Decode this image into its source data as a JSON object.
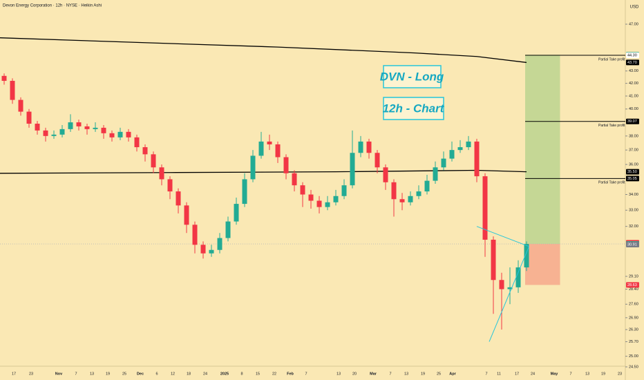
{
  "header": {
    "title": "Devon Energy Corporation · 12h · NYSE · Heikin Ashi",
    "currency": "USD"
  },
  "chart_data": {
    "type": "candlestick",
    "log_scale": true,
    "up_color": "#22ab94",
    "down_color": "#f23645",
    "ylim": [
      24.5,
      47
    ],
    "yticks": [
      {
        "value": 47,
        "label": "47.00"
      },
      {
        "value": 43,
        "label": "43.00"
      },
      {
        "value": 42,
        "label": "42.00"
      },
      {
        "value": 41,
        "label": "41.00"
      },
      {
        "value": 40,
        "label": "40.00"
      },
      {
        "value": 38,
        "label": "38.00"
      },
      {
        "value": 37,
        "label": "37.00"
      },
      {
        "value": 36,
        "label": "36.00"
      },
      {
        "value": 34,
        "label": "34.00"
      },
      {
        "value": 33,
        "label": "33.00"
      },
      {
        "value": 32,
        "label": "32.00"
      },
      {
        "value": 29.1,
        "label": "29.10"
      },
      {
        "value": 28.4,
        "label": "28.40"
      },
      {
        "value": 27.6,
        "label": "27.60"
      },
      {
        "value": 26.9,
        "label": "26.90"
      },
      {
        "value": 26.3,
        "label": "26.30"
      },
      {
        "value": 25.7,
        "label": "25.70"
      },
      {
        "value": 25,
        "label": "25.00"
      },
      {
        "value": 24.5,
        "label": "24.50"
      }
    ],
    "price_tags": [
      {
        "value": 44.34,
        "label": "44.34",
        "color": "#089981"
      },
      {
        "value": 44.3,
        "label": "44.30",
        "color": "#ffffff"
      },
      {
        "value": 43.7,
        "label": "43.70",
        "color": "#000000"
      },
      {
        "value": 39.07,
        "label": "39.07",
        "color": "#000000"
      },
      {
        "value": 35.5,
        "label": "35.50",
        "color": "#000000"
      },
      {
        "value": 35.05,
        "label": "35.05",
        "color": "#000000"
      },
      {
        "value": 31.02,
        "label": "31.02",
        "color": "#f23645"
      },
      {
        "value": 30.95,
        "label": "30.95",
        "color": "#22ab94"
      },
      {
        "value": 30.91,
        "label": "30.91",
        "color": "#787b86"
      },
      {
        "value": 28.63,
        "label": "28.63",
        "color": "#f23645"
      }
    ],
    "xticks": [
      "17",
      "23",
      "Nov",
      "7",
      "13",
      "19",
      "25",
      "Dec",
      "6",
      "12",
      "18",
      "24",
      "2025",
      "8",
      "15",
      "22",
      "Feb",
      "7",
      "13",
      "20",
      "Mar",
      "7",
      "13",
      "19",
      "25",
      "Apr",
      "7",
      "11",
      "17",
      "24",
      "May",
      "7",
      "13",
      "19",
      "23"
    ],
    "candles": [
      [
        42.6,
        42.8,
        41.9,
        42.2
      ],
      [
        42.2,
        42.4,
        40.4,
        40.7
      ],
      [
        40.7,
        40.9,
        39.5,
        39.8
      ],
      [
        39.8,
        40.0,
        38.6,
        38.9
      ],
      [
        38.9,
        39.1,
        38.1,
        38.4
      ],
      [
        38.4,
        38.6,
        37.6,
        38.0
      ],
      [
        38.0,
        38.4,
        37.8,
        38.1
      ],
      [
        38.1,
        38.8,
        37.9,
        38.5
      ],
      [
        38.5,
        39.6,
        38.3,
        39.0
      ],
      [
        39.0,
        39.2,
        38.4,
        38.7
      ],
      [
        38.7,
        38.9,
        38.1,
        38.5
      ],
      [
        38.5,
        39.0,
        38.3,
        38.6
      ],
      [
        38.6,
        38.8,
        37.8,
        38.2
      ],
      [
        38.2,
        38.4,
        37.6,
        37.9
      ],
      [
        37.9,
        38.6,
        37.7,
        38.3
      ],
      [
        38.3,
        38.5,
        37.6,
        37.9
      ],
      [
        37.9,
        38.1,
        36.9,
        37.2
      ],
      [
        37.2,
        37.4,
        36.2,
        36.7
      ],
      [
        36.7,
        36.9,
        35.4,
        35.8
      ],
      [
        35.8,
        36.0,
        34.6,
        35.0
      ],
      [
        35.0,
        35.2,
        33.7,
        34.2
      ],
      [
        34.2,
        34.4,
        32.8,
        33.3
      ],
      [
        33.3,
        33.5,
        31.6,
        32.1
      ],
      [
        32.1,
        32.3,
        30.4,
        30.9
      ],
      [
        30.9,
        31.1,
        30.1,
        30.4
      ],
      [
        30.4,
        30.9,
        30.2,
        30.6
      ],
      [
        30.6,
        31.6,
        30.4,
        31.3
      ],
      [
        31.3,
        32.6,
        31.1,
        32.3
      ],
      [
        32.3,
        33.8,
        32.1,
        33.4
      ],
      [
        33.4,
        35.4,
        33.2,
        35.0
      ],
      [
        35.0,
        37.0,
        34.8,
        36.6
      ],
      [
        36.6,
        38.3,
        36.4,
        37.6
      ],
      [
        37.6,
        38.1,
        37.0,
        37.4
      ],
      [
        37.4,
        37.6,
        36.1,
        36.5
      ],
      [
        36.5,
        36.7,
        35.0,
        35.4
      ],
      [
        35.4,
        35.6,
        34.2,
        34.6
      ],
      [
        34.6,
        34.8,
        33.2,
        34.0
      ],
      [
        34.0,
        34.3,
        33.1,
        33.6
      ],
      [
        33.6,
        33.9,
        32.8,
        33.2
      ],
      [
        33.2,
        33.9,
        33.0,
        33.5
      ],
      [
        33.5,
        34.3,
        33.3,
        33.9
      ],
      [
        33.9,
        35.0,
        33.7,
        34.6
      ],
      [
        34.6,
        38.4,
        34.4,
        36.8
      ],
      [
        36.8,
        38.0,
        36.5,
        37.6
      ],
      [
        37.6,
        37.8,
        36.4,
        36.8
      ],
      [
        36.8,
        37.0,
        35.4,
        35.8
      ],
      [
        35.8,
        36.0,
        34.3,
        34.8
      ],
      [
        34.8,
        35.0,
        32.6,
        33.7
      ],
      [
        33.7,
        34.1,
        33.0,
        33.5
      ],
      [
        33.5,
        34.2,
        33.3,
        33.9
      ],
      [
        33.9,
        34.6,
        33.7,
        34.2
      ],
      [
        34.2,
        35.3,
        34.0,
        34.9
      ],
      [
        34.9,
        36.2,
        34.7,
        35.8
      ],
      [
        35.8,
        36.9,
        35.6,
        36.4
      ],
      [
        36.4,
        37.6,
        36.2,
        37.0
      ],
      [
        37.0,
        37.7,
        36.8,
        37.2
      ],
      [
        37.2,
        38.0,
        37.0,
        37.6
      ],
      [
        37.6,
        37.8,
        34.8,
        35.2
      ],
      [
        35.2,
        35.4,
        30.2,
        31.2
      ],
      [
        31.2,
        31.4,
        27.1,
        28.9
      ],
      [
        28.9,
        29.3,
        26.3,
        28.4
      ],
      [
        28.4,
        29.6,
        27.6,
        28.5
      ],
      [
        28.5,
        30.0,
        28.2,
        29.6
      ],
      [
        29.6,
        31.1,
        29.4,
        30.95
      ]
    ],
    "lines": [
      {
        "color": "#000000",
        "x": [
          -0.5,
          16,
          33,
          49.5,
          57,
          63
        ],
        "values": [
          45.8,
          45.4,
          45.0,
          44.5,
          44.2,
          43.7
        ]
      },
      {
        "color": "#000000",
        "x": [
          -0.5,
          20,
          40,
          57,
          63
        ],
        "values": [
          35.4,
          35.45,
          35.5,
          35.6,
          35.5
        ]
      }
    ],
    "levels": [
      {
        "value": 44.3,
        "label": "Partial Take profit"
      },
      {
        "value": 39.07,
        "label": "Partial Take profit"
      },
      {
        "value": 35.05,
        "label": "Partial Take profit"
      }
    ],
    "position": {
      "x": [
        63,
        67
      ],
      "target": 44.34,
      "entry": 30.95,
      "stop": 28.63
    },
    "triangle": {
      "color": "#26c6da",
      "x": [
        57,
        63.3,
        58.5
      ],
      "values": [
        32.0,
        30.8,
        25.7
      ]
    },
    "annotations": [
      "DVN - Long",
      "12h - Chart"
    ]
  }
}
